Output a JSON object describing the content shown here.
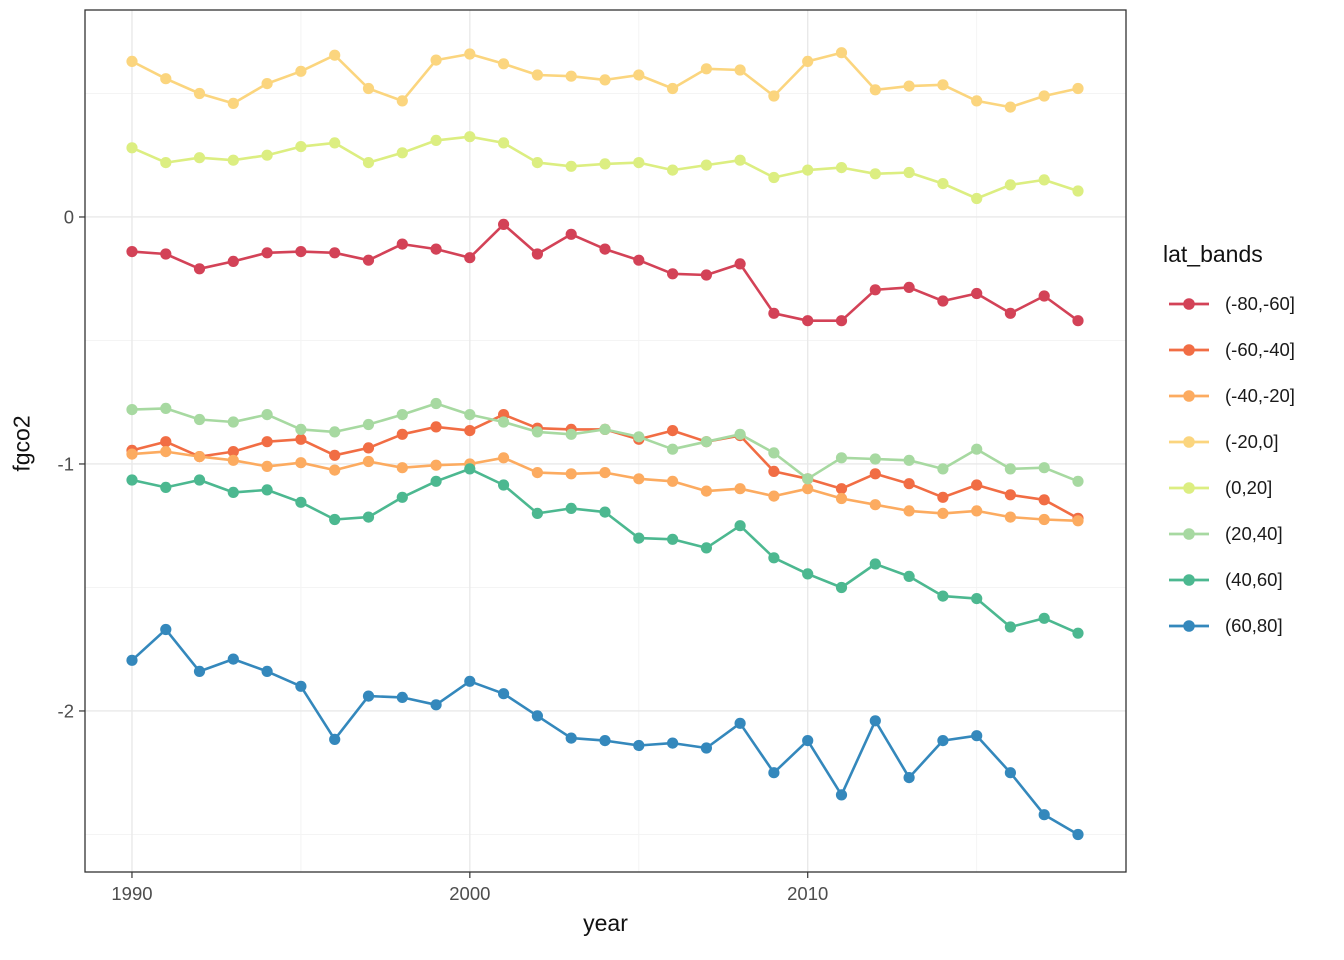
{
  "chart_data": {
    "type": "line",
    "title": "",
    "xlabel": "year",
    "ylabel": "fgco2",
    "legend_title": "lat_bands",
    "legend_position": "right",
    "grid": true,
    "panel_border_color": "#333333",
    "major_grid_color": "#e9e9e9",
    "minor_grid_color": "#f3f3f3",
    "axis_text_color": "#4d4d4d",
    "xlim": [
      1988.61,
      2019.42
    ],
    "ylim": [
      -2.652,
      0.838
    ],
    "x_ticks": [
      1990,
      2000,
      2010
    ],
    "x_tick_labels": [
      "1990",
      "2000",
      "2010"
    ],
    "x_minor": [
      1995,
      2005,
      2015
    ],
    "y_ticks": [
      0,
      -1,
      -2
    ],
    "y_tick_labels": [
      "0",
      "-1",
      "-2"
    ],
    "y_minor": [
      0.5,
      -0.5,
      -1.5,
      -2.5
    ],
    "x": [
      1990,
      1991,
      1992,
      1993,
      1994,
      1995,
      1996,
      1997,
      1998,
      1999,
      2000,
      2001,
      2002,
      2003,
      2004,
      2005,
      2006,
      2007,
      2008,
      2009,
      2010,
      2011,
      2012,
      2013,
      2014,
      2015,
      2016,
      2017,
      2018
    ],
    "series": [
      {
        "name": "(-80,-60]",
        "color": "#d34257",
        "values": [
          -0.14,
          -0.15,
          -0.21,
          -0.18,
          -0.145,
          -0.14,
          -0.145,
          -0.175,
          -0.11,
          -0.13,
          -0.165,
          -0.03,
          -0.15,
          -0.07,
          -0.13,
          -0.175,
          -0.23,
          -0.235,
          -0.19,
          -0.39,
          -0.42,
          -0.42,
          -0.295,
          -0.285,
          -0.34,
          -0.31,
          -0.39,
          -0.32,
          -0.42
        ]
      },
      {
        "name": "(-60,-40]",
        "color": "#f16d44",
        "values": [
          -0.945,
          -0.91,
          -0.97,
          -0.95,
          -0.91,
          -0.9,
          -0.965,
          -0.935,
          -0.88,
          -0.85,
          -0.865,
          -0.8,
          -0.855,
          -0.86,
          -0.86,
          -0.9,
          -0.865,
          -0.91,
          -0.885,
          -1.03,
          -1.06,
          -1.1,
          -1.04,
          -1.08,
          -1.135,
          -1.085,
          -1.125,
          -1.145,
          -1.22
        ]
      },
      {
        "name": "(-40,-20]",
        "color": "#fcab60",
        "values": [
          -0.96,
          -0.95,
          -0.97,
          -0.985,
          -1.01,
          -0.995,
          -1.025,
          -0.99,
          -1.015,
          -1.005,
          -1.0,
          -0.975,
          -1.035,
          -1.04,
          -1.035,
          -1.06,
          -1.07,
          -1.11,
          -1.1,
          -1.13,
          -1.1,
          -1.14,
          -1.165,
          -1.19,
          -1.2,
          -1.19,
          -1.215,
          -1.225,
          -1.23
        ]
      },
      {
        "name": "(-20,0]",
        "color": "#fbd57e",
        "values": [
          0.63,
          0.56,
          0.5,
          0.46,
          0.54,
          0.59,
          0.655,
          0.52,
          0.47,
          0.635,
          0.66,
          0.62,
          0.575,
          0.57,
          0.555,
          0.575,
          0.52,
          0.6,
          0.595,
          0.49,
          0.63,
          0.665,
          0.515,
          0.53,
          0.535,
          0.47,
          0.445,
          0.49,
          0.52
        ]
      },
      {
        "name": "(0,20]",
        "color": "#dcee81",
        "values": [
          0.28,
          0.22,
          0.24,
          0.23,
          0.25,
          0.285,
          0.3,
          0.22,
          0.26,
          0.31,
          0.325,
          0.3,
          0.22,
          0.205,
          0.215,
          0.22,
          0.19,
          0.21,
          0.23,
          0.16,
          0.19,
          0.2,
          0.175,
          0.18,
          0.135,
          0.075,
          0.13,
          0.15,
          0.105
        ]
      },
      {
        "name": "(20,40]",
        "color": "#a7d9a1",
        "values": [
          -0.78,
          -0.775,
          -0.82,
          -0.83,
          -0.8,
          -0.86,
          -0.87,
          -0.84,
          -0.8,
          -0.755,
          -0.8,
          -0.83,
          -0.87,
          -0.88,
          -0.86,
          -0.89,
          -0.94,
          -0.91,
          -0.88,
          -0.955,
          -1.06,
          -0.975,
          -0.98,
          -0.985,
          -1.02,
          -0.94,
          -1.02,
          -1.015,
          -1.07
        ]
      },
      {
        "name": "(40,60]",
        "color": "#4cb890",
        "values": [
          -1.065,
          -1.095,
          -1.065,
          -1.115,
          -1.105,
          -1.155,
          -1.225,
          -1.215,
          -1.135,
          -1.07,
          -1.02,
          -1.085,
          -1.2,
          -1.18,
          -1.195,
          -1.3,
          -1.305,
          -1.34,
          -1.25,
          -1.38,
          -1.445,
          -1.5,
          -1.405,
          -1.455,
          -1.535,
          -1.545,
          -1.66,
          -1.625,
          -1.685
        ]
      },
      {
        "name": "(60,80]",
        "color": "#3488bc",
        "values": [
          -1.795,
          -1.67,
          -1.84,
          -1.79,
          -1.84,
          -1.9,
          -2.115,
          -1.94,
          -1.945,
          -1.975,
          -1.88,
          -1.93,
          -2.02,
          -2.11,
          -2.12,
          -2.14,
          -2.13,
          -2.15,
          -2.05,
          -2.25,
          -2.12,
          -2.34,
          -2.04,
          -2.27,
          -2.12,
          -2.1,
          -2.25,
          -2.42,
          -2.5
        ]
      }
    ]
  }
}
